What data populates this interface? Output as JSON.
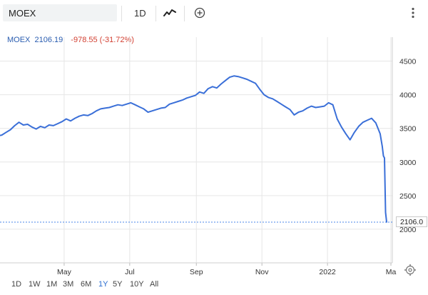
{
  "toolbar": {
    "symbol": "MOEX",
    "interval": "1D",
    "icons": [
      "line-chart-icon",
      "add-comparison-icon",
      "more-vertical-icon"
    ]
  },
  "quote": {
    "symbol": "MOEX",
    "price": "2106.19",
    "change": "-978.55 (-31.72%)"
  },
  "colors": {
    "line": "#3a6fd8",
    "accent": "#2a5db0",
    "negative": "#d23f31",
    "grid": "#e6e6e6",
    "price_line": "#4a86e8"
  },
  "price_tag": "2106.0",
  "ranges": {
    "items": [
      "1D",
      "1W",
      "1M",
      "3M",
      "6M",
      "1Y",
      "5Y",
      "10Y",
      "All"
    ],
    "active": "1Y"
  },
  "chart_data": {
    "type": "line",
    "series": [
      {
        "x": [
          "2021-03-01",
          "2021-03-04",
          "2021-03-08",
          "2021-03-12",
          "2021-03-16",
          "2021-03-20",
          "2021-03-24",
          "2021-03-28",
          "2021-04-01",
          "2021-04-05",
          "2021-04-09",
          "2021-04-13",
          "2021-04-17",
          "2021-04-21",
          "2021-04-25",
          "2021-04-29",
          "2021-05-03",
          "2021-05-07",
          "2021-05-11",
          "2021-05-15",
          "2021-05-19",
          "2021-05-23",
          "2021-05-27",
          "2021-05-31",
          "2021-06-04",
          "2021-06-08",
          "2021-06-12",
          "2021-06-16",
          "2021-06-20",
          "2021-06-24",
          "2021-06-28",
          "2021-07-02",
          "2021-07-06",
          "2021-07-10",
          "2021-07-14",
          "2021-07-18",
          "2021-07-22",
          "2021-07-26",
          "2021-07-30",
          "2021-08-03",
          "2021-08-07",
          "2021-08-11",
          "2021-08-15",
          "2021-08-19",
          "2021-08-23",
          "2021-08-27",
          "2021-08-31",
          "2021-09-04",
          "2021-09-08",
          "2021-09-12",
          "2021-09-16",
          "2021-09-20",
          "2021-09-24",
          "2021-09-28",
          "2021-10-02",
          "2021-10-06",
          "2021-10-10",
          "2021-10-14",
          "2021-10-18",
          "2021-10-22",
          "2021-10-26",
          "2021-10-30",
          "2021-11-03",
          "2021-11-07",
          "2021-11-11",
          "2021-11-15",
          "2021-11-19",
          "2021-11-23",
          "2021-11-27",
          "2021-12-01",
          "2021-12-05",
          "2021-12-09",
          "2021-12-13",
          "2021-12-17",
          "2021-12-21",
          "2021-12-25",
          "2021-12-29",
          "2022-01-02",
          "2022-01-06",
          "2022-01-10",
          "2022-01-14",
          "2022-01-18",
          "2022-01-22",
          "2022-01-26",
          "2022-01-30",
          "2022-02-03",
          "2022-02-07",
          "2022-02-11",
          "2022-02-15",
          "2022-02-19",
          "2022-02-21",
          "2022-02-22",
          "2022-02-23",
          "2022-02-24",
          "2022-02-25"
        ],
        "values": [
          3390,
          3400,
          3440,
          3480,
          3540,
          3590,
          3550,
          3560,
          3520,
          3490,
          3530,
          3510,
          3550,
          3540,
          3570,
          3600,
          3640,
          3610,
          3650,
          3680,
          3700,
          3690,
          3720,
          3760,
          3790,
          3800,
          3810,
          3830,
          3850,
          3840,
          3860,
          3880,
          3850,
          3820,
          3790,
          3740,
          3760,
          3780,
          3800,
          3810,
          3860,
          3880,
          3900,
          3920,
          3950,
          3970,
          3990,
          4040,
          4020,
          4090,
          4120,
          4100,
          4160,
          4210,
          4260,
          4280,
          4270,
          4250,
          4230,
          4200,
          4170,
          4080,
          4000,
          3960,
          3940,
          3900,
          3860,
          3820,
          3780,
          3700,
          3740,
          3760,
          3800,
          3830,
          3810,
          3820,
          3830,
          3880,
          3850,
          3640,
          3520,
          3420,
          3330,
          3440,
          3530,
          3590,
          3620,
          3650,
          3580,
          3420,
          3230,
          3090,
          3060,
          2250,
          2106
        ]
      }
    ],
    "x_tick_labels": [
      "May",
      "Jul",
      "Sep",
      "Nov",
      "2022",
      "Ma"
    ],
    "y_tick_labels": [
      "2000",
      "2500",
      "3000",
      "3500",
      "4000",
      "4500"
    ],
    "ylim": [
      1500,
      4750
    ],
    "grid": true,
    "last_value": 2106.0
  }
}
